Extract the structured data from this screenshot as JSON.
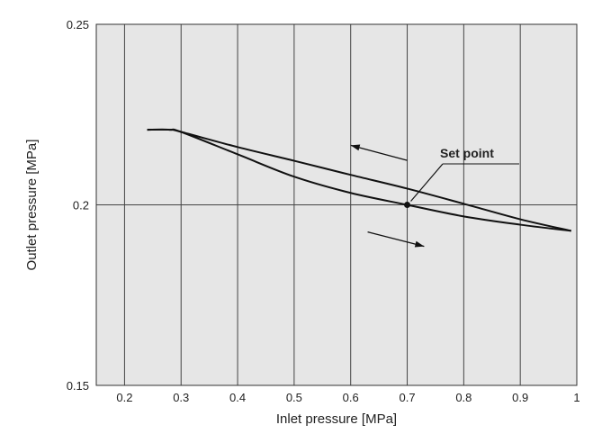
{
  "chart_data": {
    "type": "line",
    "title": "",
    "xlabel": "Inlet pressure [MPa]",
    "ylabel": "Outlet pressure [MPa]",
    "xlim": [
      0.15,
      1.0
    ],
    "ylim": [
      0.15,
      0.25
    ],
    "x_ticks": [
      "0.2",
      "0.3",
      "0.4",
      "0.5",
      "0.6",
      "0.7",
      "0.8",
      "0.9",
      "1"
    ],
    "y_ticks": [
      "0.15",
      "0.2",
      "0.25"
    ],
    "grid": "on",
    "series": [
      {
        "name": "",
        "direction": "decreasing inlet pressure",
        "x": [
          0.24,
          0.28,
          0.3,
          0.4,
          0.5,
          0.6,
          0.7,
          0.8,
          0.9,
          0.99
        ],
        "y": [
          0.2208,
          0.2208,
          0.2202,
          0.216,
          0.2122,
          0.2083,
          0.2045,
          0.2003,
          0.196,
          0.1928
        ]
      },
      {
        "name": "",
        "direction": "increasing inlet pressure",
        "x": [
          0.24,
          0.28,
          0.3,
          0.4,
          0.5,
          0.6,
          0.7,
          0.8,
          0.9,
          0.99
        ],
        "y": [
          0.2208,
          0.2208,
          0.2202,
          0.214,
          0.2078,
          0.2033,
          0.2,
          0.1968,
          0.1945,
          0.1928
        ]
      }
    ],
    "annotations": [
      {
        "text": "Set point",
        "x": 0.7,
        "y": 0.2
      }
    ]
  }
}
